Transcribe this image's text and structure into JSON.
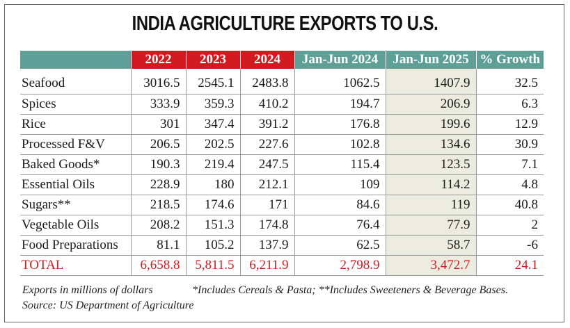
{
  "chart_data": {
    "type": "table",
    "title": "INDIA AGRICULTURE EXPORTS TO U.S.",
    "columns": [
      "2022",
      "2023",
      "2024",
      "Jan-Jun 2024",
      "Jan-Jun 2025",
      "% Growth"
    ],
    "rows": [
      {
        "category": "Seafood",
        "values": [
          "3016.5",
          "2545.1",
          "2483.8",
          "1062.5",
          "1407.9",
          "32.5"
        ]
      },
      {
        "category": "Spices",
        "values": [
          "333.9",
          "359.3",
          "410.2",
          "194.7",
          "206.9",
          "6.3"
        ]
      },
      {
        "category": "Rice",
        "values": [
          "301",
          "347.4",
          "391.2",
          "176.8",
          "199.6",
          "12.9"
        ]
      },
      {
        "category": "Processed F&V",
        "values": [
          "206.5",
          "202.5",
          "227.6",
          "102.8",
          "134.6",
          "30.9"
        ]
      },
      {
        "category": "Baked Goods*",
        "values": [
          "190.3",
          "219.4",
          "247.5",
          "115.4",
          "123.5",
          "7.1"
        ]
      },
      {
        "category": "Essential Oils",
        "values": [
          "228.9",
          "180",
          "212.1",
          "109",
          "114.2",
          "4.8"
        ]
      },
      {
        "category": "Sugars**",
        "values": [
          "218.5",
          "174.6",
          "171",
          "84.6",
          "119",
          "40.8"
        ]
      },
      {
        "category": "Vegetable Oils",
        "values": [
          "208.2",
          "151.3",
          "174.8",
          "76.4",
          "77.9",
          "2"
        ]
      },
      {
        "category": "Food Preparations",
        "values": [
          "81.1",
          "105.2",
          "137.9",
          "62.5",
          "58.7",
          "-6"
        ]
      }
    ],
    "total": {
      "category": "TOTAL",
      "values": [
        "6,658.8",
        "5,811.5",
        "6,211.9",
        "2,798.9",
        "3,472.7",
        "24.1"
      ]
    },
    "notes": {
      "units": "Exports in millions of dollars",
      "footnote": "*Includes Cereals & Pasta; **Includes Sweeteners & Beverage Bases.",
      "source": "Source: US Department of Agriculture"
    }
  },
  "colors": {
    "year_header": "#d01a20",
    "teal_header": "#5e9f98",
    "shaded_column": "#ecebe0",
    "total_text": "#d01a20"
  }
}
